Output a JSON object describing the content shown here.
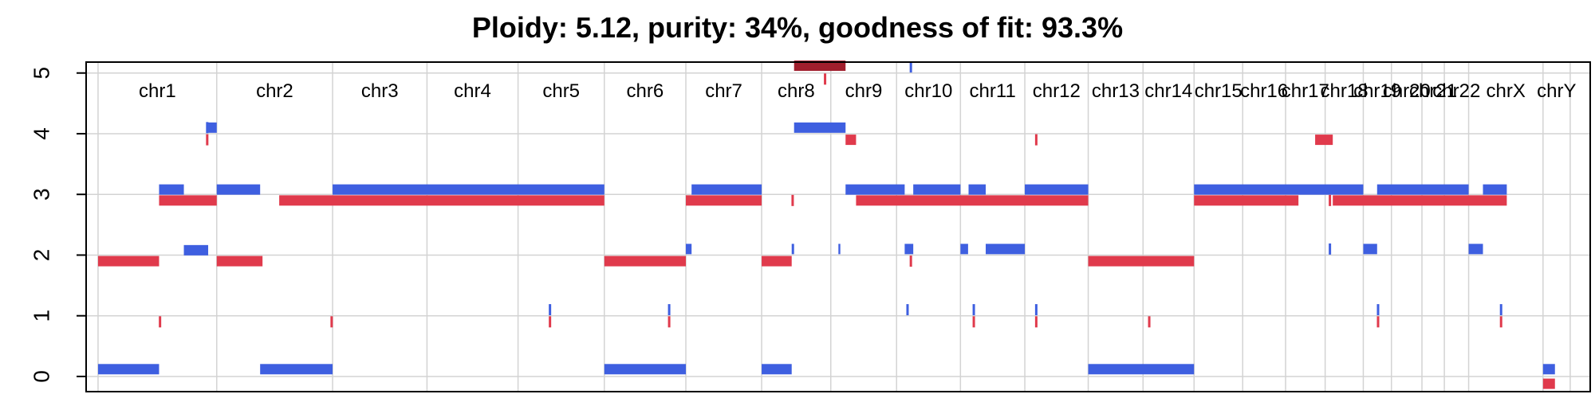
{
  "chart_data": {
    "type": "segment",
    "title": "Ploidy: 5.12, purity: 34%, goodness of fit: 93.3%",
    "xlabel": "",
    "ylabel": "",
    "ylim": [
      0,
      5
    ],
    "yticks": [
      0,
      1,
      2,
      3,
      4,
      5
    ],
    "grid": true,
    "colors": {
      "major": "#3e5fe0",
      "minor": "#e03a4c",
      "outlier": "#a01e2d",
      "grid": "#d3d3d3"
    },
    "chromosomes": [
      {
        "name": "chr1",
        "start": 0,
        "end": 249
      },
      {
        "name": "chr2",
        "start": 249,
        "end": 492
      },
      {
        "name": "chr3",
        "start": 492,
        "end": 690
      },
      {
        "name": "chr4",
        "start": 690,
        "end": 881
      },
      {
        "name": "chr5",
        "start": 881,
        "end": 1062
      },
      {
        "name": "chr6",
        "start": 1062,
        "end": 1233
      },
      {
        "name": "chr7",
        "start": 1233,
        "end": 1392
      },
      {
        "name": "chr8",
        "start": 1392,
        "end": 1537
      },
      {
        "name": "chr9",
        "start": 1537,
        "end": 1675
      },
      {
        "name": "chr10",
        "start": 1675,
        "end": 1809
      },
      {
        "name": "chr11",
        "start": 1809,
        "end": 1944
      },
      {
        "name": "chr12",
        "start": 1944,
        "end": 2077
      },
      {
        "name": "chr13",
        "start": 2077,
        "end": 2192
      },
      {
        "name": "chr14",
        "start": 2192,
        "end": 2299
      },
      {
        "name": "chr15",
        "start": 2299,
        "end": 2401
      },
      {
        "name": "chr16",
        "start": 2401,
        "end": 2491
      },
      {
        "name": "chr17",
        "start": 2491,
        "end": 2574
      },
      {
        "name": "chr18",
        "start": 2574,
        "end": 2654
      },
      {
        "name": "chr19",
        "start": 2654,
        "end": 2713
      },
      {
        "name": "chr20",
        "start": 2713,
        "end": 2777
      },
      {
        "name": "chr21",
        "start": 2777,
        "end": 2824
      },
      {
        "name": "chr22",
        "start": 2824,
        "end": 2875
      },
      {
        "name": "chrX",
        "start": 2875,
        "end": 3031
      },
      {
        "name": "chrY",
        "start": 3031,
        "end": 3088
      }
    ],
    "xlim": [
      -25,
      3130
    ],
    "series": [
      {
        "name": "major",
        "segments": [
          {
            "start": 0,
            "end": 128,
            "value": 0.12
          },
          {
            "start": 128,
            "end": 180,
            "value": 3.08
          },
          {
            "start": 180,
            "end": 231,
            "value": 2.08
          },
          {
            "start": 231,
            "end": 249,
            "value": 4.1
          },
          {
            "start": 249,
            "end": 340,
            "value": 3.08
          },
          {
            "start": 340,
            "end": 492,
            "value": 0.12
          },
          {
            "start": 492,
            "end": 1062,
            "value": 3.08
          },
          {
            "start": 1062,
            "end": 1233,
            "value": 0.12
          },
          {
            "start": 1233,
            "end": 1245,
            "value": 2.1
          },
          {
            "start": 1245,
            "end": 1392,
            "value": 3.08
          },
          {
            "start": 1392,
            "end": 1455,
            "value": 0.12
          },
          {
            "start": 1455,
            "end": 1460,
            "value": 2.1
          },
          {
            "start": 1460,
            "end": 1568,
            "value": 4.1
          },
          {
            "start": 1553,
            "end": 1557,
            "value": 2.1
          },
          {
            "start": 1568,
            "end": 1692,
            "value": 3.08
          },
          {
            "start": 1692,
            "end": 1710,
            "value": 2.1
          },
          {
            "start": 1710,
            "end": 1809,
            "value": 3.08
          },
          {
            "start": 1809,
            "end": 1825,
            "value": 2.1
          },
          {
            "start": 1826,
            "end": 1862,
            "value": 3.08
          },
          {
            "start": 1862,
            "end": 1944,
            "value": 2.1
          },
          {
            "start": 1944,
            "end": 2077,
            "value": 3.08
          },
          {
            "start": 2077,
            "end": 2299,
            "value": 0.12
          },
          {
            "start": 2299,
            "end": 2654,
            "value": 3.08
          },
          {
            "start": 2654,
            "end": 2683,
            "value": 2.1
          },
          {
            "start": 2683,
            "end": 2875,
            "value": 3.08
          },
          {
            "start": 2875,
            "end": 2905,
            "value": 2.1
          },
          {
            "start": 2905,
            "end": 2955,
            "value": 3.08
          },
          {
            "start": 3031,
            "end": 3056,
            "value": 0.12
          }
        ]
      },
      {
        "name": "minor",
        "segments": [
          {
            "start": 0,
            "end": 128,
            "value": 1.9
          },
          {
            "start": 128,
            "end": 249,
            "value": 2.9
          },
          {
            "start": 249,
            "end": 345,
            "value": 1.9
          },
          {
            "start": 380,
            "end": 1062,
            "value": 2.9
          },
          {
            "start": 1062,
            "end": 1233,
            "value": 1.9
          },
          {
            "start": 1233,
            "end": 1392,
            "value": 2.9
          },
          {
            "start": 1392,
            "end": 1455,
            "value": 1.9
          },
          {
            "start": 1568,
            "end": 1590,
            "value": 3.9
          },
          {
            "start": 1590,
            "end": 2077,
            "value": 2.9
          },
          {
            "start": 2077,
            "end": 2299,
            "value": 1.9
          },
          {
            "start": 2299,
            "end": 2518,
            "value": 2.9
          },
          {
            "start": 2553,
            "end": 2590,
            "value": 3.9
          },
          {
            "start": 2590,
            "end": 2955,
            "value": 2.9
          },
          {
            "start": 3031,
            "end": 3056,
            "value": -0.12
          }
        ]
      },
      {
        "name": "outlier",
        "segments": [
          {
            "start": 1460,
            "end": 1568,
            "value": 5.12
          }
        ]
      }
    ],
    "spikes": [
      {
        "series": "major",
        "x": 229,
        "value": 4.1
      },
      {
        "series": "minor",
        "x": 229,
        "value": 3.9
      },
      {
        "series": "minor",
        "x": 130,
        "value": 0.9
      },
      {
        "series": "minor",
        "x": 490,
        "value": 0.9
      },
      {
        "series": "major",
        "x": 948,
        "value": 1.1
      },
      {
        "series": "minor",
        "x": 948,
        "value": 0.9
      },
      {
        "series": "major",
        "x": 1198,
        "value": 1.1
      },
      {
        "series": "minor",
        "x": 1198,
        "value": 0.9
      },
      {
        "series": "minor",
        "x": 1457,
        "value": 2.9
      },
      {
        "series": "minor",
        "x": 1525,
        "value": 4.9
      },
      {
        "series": "major",
        "x": 1705,
        "value": 5.1
      },
      {
        "series": "major",
        "x": 1698,
        "value": 1.1
      },
      {
        "series": "minor",
        "x": 1705,
        "value": 1.9
      },
      {
        "series": "major",
        "x": 1837,
        "value": 1.1
      },
      {
        "series": "minor",
        "x": 1837,
        "value": 0.9
      },
      {
        "series": "minor",
        "x": 1968,
        "value": 3.9
      },
      {
        "series": "major",
        "x": 1968,
        "value": 1.1
      },
      {
        "series": "minor",
        "x": 1968,
        "value": 0.9
      },
      {
        "series": "minor",
        "x": 2205,
        "value": 0.9
      },
      {
        "series": "major",
        "x": 2584,
        "value": 2.1
      },
      {
        "series": "minor",
        "x": 2584,
        "value": 2.9
      },
      {
        "series": "major",
        "x": 2685,
        "value": 1.1
      },
      {
        "series": "minor",
        "x": 2685,
        "value": 0.9
      },
      {
        "series": "major",
        "x": 2943,
        "value": 1.1
      },
      {
        "series": "minor",
        "x": 2943,
        "value": 0.9
      }
    ]
  }
}
